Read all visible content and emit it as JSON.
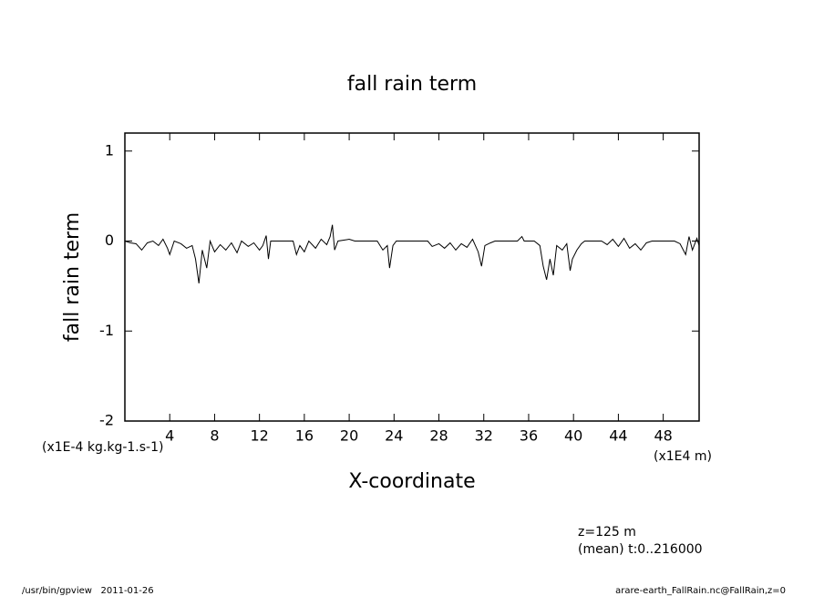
{
  "chart_data": {
    "type": "line",
    "title": "fall rain term",
    "y_label": "fall rain term",
    "y_units": "(x1E-4 kg.kg-1.s-1)",
    "x_label": "X-coordinate",
    "x_units": "(x1E4 m)",
    "annotations": [
      "z=125 m",
      "(mean) t:0..216000"
    ],
    "footer_left": "/usr/bin/gpview   2011-01-26",
    "footer_right": "arare-earth_FallRain.nc@FallRain,z=0",
    "color": "#000000",
    "xlim": [
      0,
      51.2
    ],
    "ylim": [
      -2,
      1.2
    ],
    "xticks": [
      4,
      8,
      12,
      16,
      20,
      24,
      28,
      32,
      36,
      40,
      44,
      48
    ],
    "yticks": [
      -2,
      -1,
      0,
      1
    ],
    "x": [
      0,
      0.5,
      1,
      1.5,
      2,
      2.5,
      3,
      3.4,
      3.8,
      4,
      4.4,
      5,
      5.5,
      6,
      6.3,
      6.6,
      6.9,
      7.3,
      7.6,
      8,
      8.5,
      9,
      9.5,
      10,
      10.4,
      11,
      11.5,
      12,
      12.3,
      12.6,
      12.8,
      13,
      15,
      15.3,
      15.6,
      16,
      16.4,
      17,
      17.5,
      18,
      18.3,
      18.5,
      18.7,
      19,
      20,
      20.5,
      22.5,
      23,
      23.4,
      23.6,
      23.9,
      24.2,
      27,
      27.4,
      28,
      28.5,
      29,
      29.5,
      30,
      30.5,
      31,
      31.5,
      31.8,
      32.1,
      32.6,
      33,
      35,
      35.4,
      35.6,
      36.5,
      37,
      37.3,
      37.6,
      37.9,
      38.2,
      38.5,
      39,
      39.4,
      39.7,
      39.9,
      40.3,
      40.7,
      41,
      42.5,
      43,
      43.5,
      44,
      44.5,
      45,
      45.5,
      46,
      46.5,
      47,
      49,
      49.5,
      50,
      50.3,
      50.6,
      51,
      51.2
    ],
    "values": [
      0,
      -0.02,
      -0.03,
      -0.1,
      -0.02,
      0,
      -0.05,
      0.02,
      -0.08,
      -0.15,
      0,
      -0.03,
      -0.08,
      -0.05,
      -0.2,
      -0.47,
      -0.1,
      -0.3,
      0,
      -0.12,
      -0.04,
      -0.1,
      -0.02,
      -0.13,
      0,
      -0.06,
      -0.02,
      -0.1,
      -0.05,
      0.06,
      -0.2,
      0,
      0,
      -0.15,
      -0.05,
      -0.12,
      0,
      -0.08,
      0.02,
      -0.04,
      0.05,
      0.18,
      -0.1,
      0,
      0.02,
      0,
      0,
      -0.1,
      -0.05,
      -0.3,
      -0.05,
      0,
      0,
      -0.06,
      -0.03,
      -0.08,
      -0.02,
      -0.1,
      -0.03,
      -0.07,
      0.02,
      -0.12,
      -0.28,
      -0.05,
      -0.02,
      0,
      0,
      0.05,
      0,
      0,
      -0.05,
      -0.28,
      -0.43,
      -0.2,
      -0.38,
      -0.05,
      -0.1,
      -0.03,
      -0.33,
      -0.2,
      -0.1,
      -0.03,
      0,
      0,
      -0.04,
      0.02,
      -0.06,
      0.03,
      -0.08,
      -0.03,
      -0.1,
      -0.02,
      0,
      0,
      -0.03,
      -0.15,
      0.05,
      -0.1,
      0.03,
      -0.05
    ]
  }
}
